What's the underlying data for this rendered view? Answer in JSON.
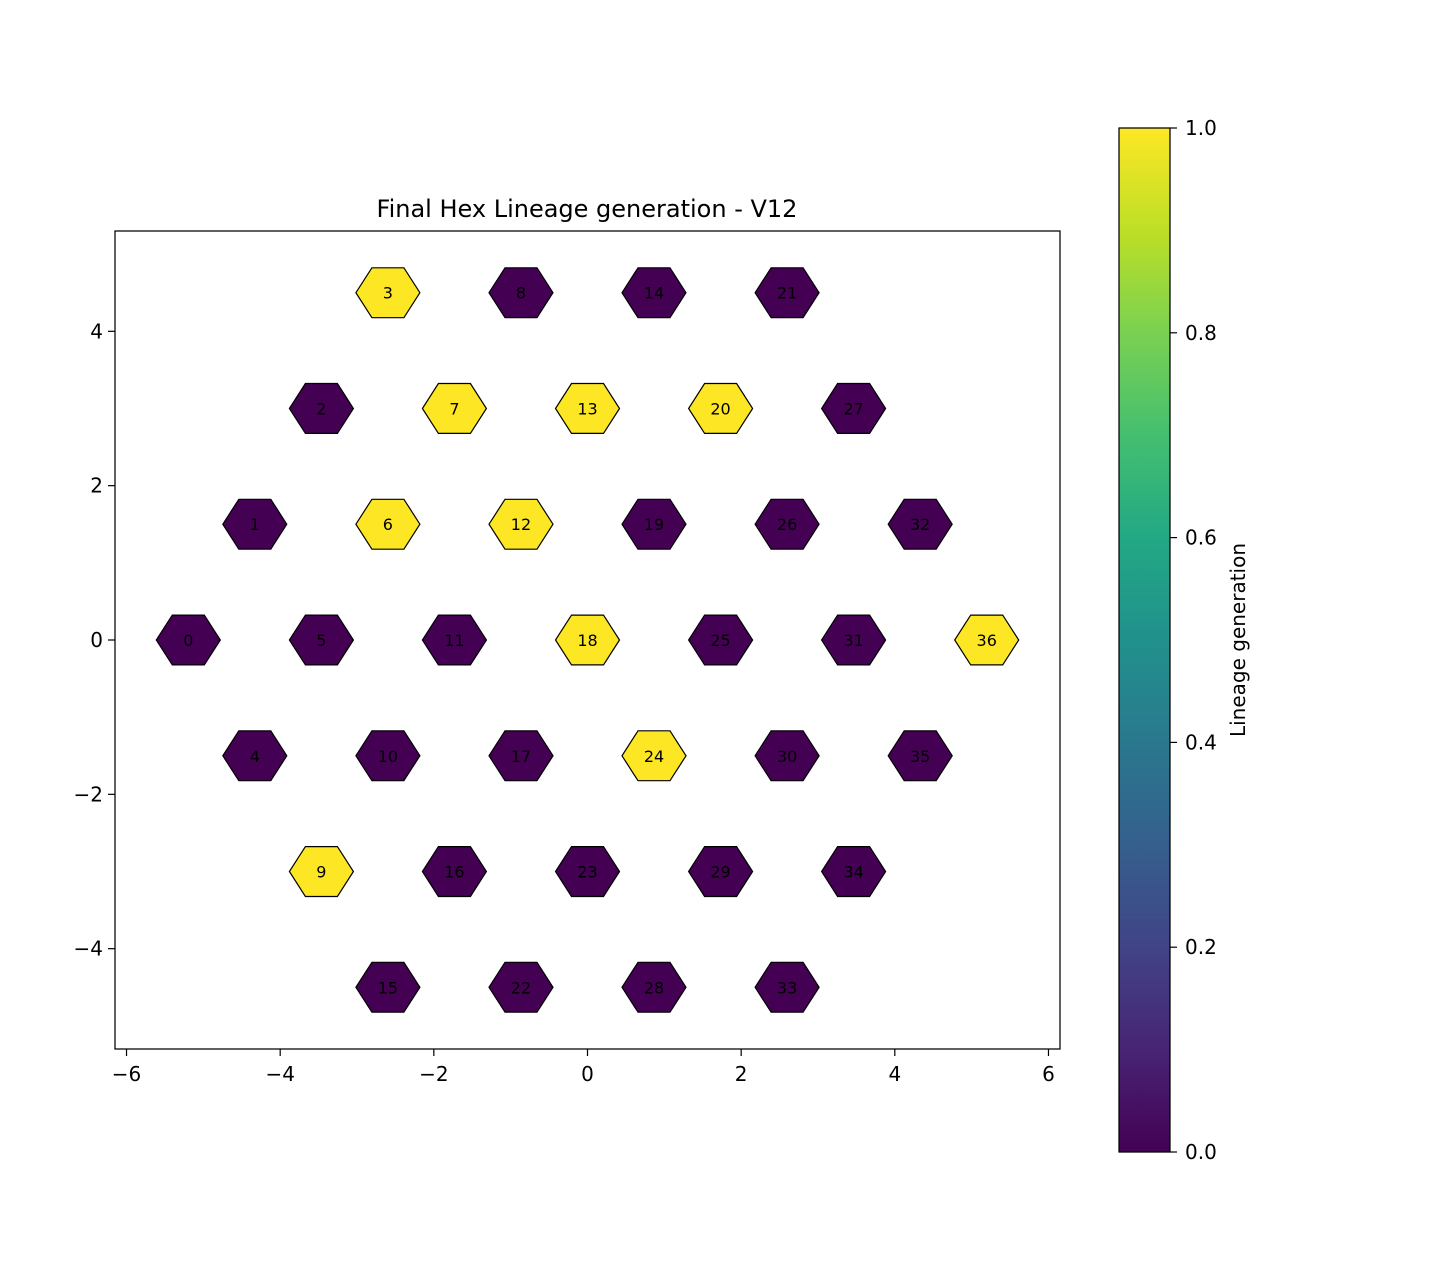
{
  "chart_data": {
    "type": "heatmap",
    "title": "Final Hex Lineage generation - V12",
    "xlabel": "",
    "ylabel": "",
    "xlim": [
      -6.15,
      6.15
    ],
    "ylim": [
      -5.3,
      5.3
    ],
    "x_ticks": [
      -6,
      -4,
      -2,
      0,
      2,
      4,
      6
    ],
    "y_ticks": [
      -4,
      -2,
      0,
      2,
      4
    ],
    "grid": false,
    "colormap": "viridis",
    "colors": {
      "low": "#440154",
      "high": "#fde725",
      "edge": "#000000"
    },
    "colorbar": {
      "label": "Lineage generation",
      "range": [
        0.0,
        1.0
      ],
      "ticks": [
        "0.0",
        "0.2",
        "0.4",
        "0.6",
        "0.8",
        "1.0"
      ]
    },
    "cells": [
      {
        "id": "0",
        "x": -5.196,
        "y": 0.0,
        "value": 0
      },
      {
        "id": "1",
        "x": -4.33,
        "y": 1.5,
        "value": 0
      },
      {
        "id": "2",
        "x": -3.464,
        "y": 3.0,
        "value": 0
      },
      {
        "id": "3",
        "x": -2.598,
        "y": 4.5,
        "value": 1
      },
      {
        "id": "4",
        "x": -4.33,
        "y": -1.5,
        "value": 0
      },
      {
        "id": "5",
        "x": -3.464,
        "y": 0.0,
        "value": 0
      },
      {
        "id": "6",
        "x": -2.598,
        "y": 1.5,
        "value": 1
      },
      {
        "id": "7",
        "x": -1.732,
        "y": 3.0,
        "value": 1
      },
      {
        "id": "8",
        "x": -0.866,
        "y": 4.5,
        "value": 0
      },
      {
        "id": "9",
        "x": -3.464,
        "y": -3.0,
        "value": 1
      },
      {
        "id": "10",
        "x": -2.598,
        "y": -1.5,
        "value": 0
      },
      {
        "id": "11",
        "x": -1.732,
        "y": 0.0,
        "value": 0
      },
      {
        "id": "12",
        "x": -0.866,
        "y": 1.5,
        "value": 1
      },
      {
        "id": "13",
        "x": 0.0,
        "y": 3.0,
        "value": 1
      },
      {
        "id": "14",
        "x": 0.866,
        "y": 4.5,
        "value": 0
      },
      {
        "id": "15",
        "x": -2.598,
        "y": -4.5,
        "value": 0
      },
      {
        "id": "16",
        "x": -1.732,
        "y": -3.0,
        "value": 0
      },
      {
        "id": "17",
        "x": -0.866,
        "y": -1.5,
        "value": 0
      },
      {
        "id": "18",
        "x": 0.0,
        "y": 0.0,
        "value": 1
      },
      {
        "id": "19",
        "x": 0.866,
        "y": 1.5,
        "value": 0
      },
      {
        "id": "20",
        "x": 1.732,
        "y": 3.0,
        "value": 1
      },
      {
        "id": "21",
        "x": 2.598,
        "y": 4.5,
        "value": 0
      },
      {
        "id": "22",
        "x": -0.866,
        "y": -4.5,
        "value": 0
      },
      {
        "id": "23",
        "x": 0.0,
        "y": -3.0,
        "value": 0
      },
      {
        "id": "24",
        "x": 0.866,
        "y": -1.5,
        "value": 1
      },
      {
        "id": "25",
        "x": 1.732,
        "y": 0.0,
        "value": 0
      },
      {
        "id": "26",
        "x": 2.598,
        "y": 1.5,
        "value": 0
      },
      {
        "id": "27",
        "x": 3.464,
        "y": 3.0,
        "value": 0
      },
      {
        "id": "28",
        "x": 0.866,
        "y": -4.5,
        "value": 0
      },
      {
        "id": "29",
        "x": 1.732,
        "y": -3.0,
        "value": 0
      },
      {
        "id": "30",
        "x": 2.598,
        "y": -1.5,
        "value": 0
      },
      {
        "id": "31",
        "x": 3.464,
        "y": 0.0,
        "value": 0
      },
      {
        "id": "32",
        "x": 4.33,
        "y": 1.5,
        "value": 0
      },
      {
        "id": "33",
        "x": 2.598,
        "y": -4.5,
        "value": 0
      },
      {
        "id": "34",
        "x": 3.464,
        "y": -3.0,
        "value": 0
      },
      {
        "id": "35",
        "x": 4.33,
        "y": -1.5,
        "value": 0
      },
      {
        "id": "36",
        "x": 5.196,
        "y": 0.0,
        "value": 1
      }
    ]
  }
}
